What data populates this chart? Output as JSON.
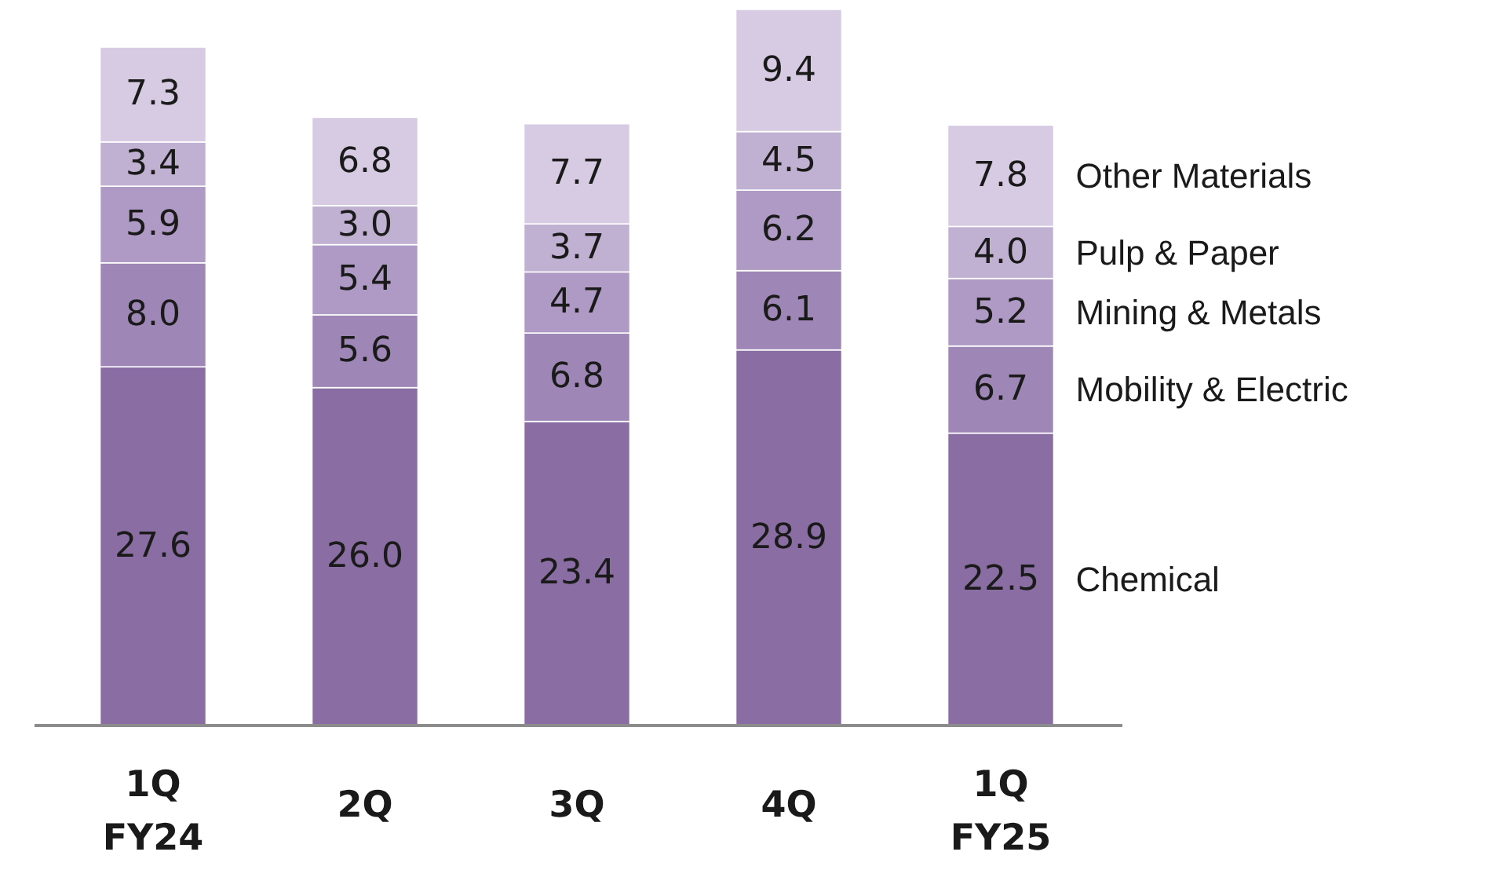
{
  "chart_data": {
    "type": "bar",
    "stacked": true,
    "categories": [
      "1Q FY24",
      "2Q",
      "3Q",
      "4Q",
      "1Q FY25"
    ],
    "series": [
      {
        "name": "Chemical",
        "color": "#8a6ea3",
        "values": [
          27.6,
          26.0,
          23.4,
          28.9,
          22.5
        ],
        "value_labels": [
          "27.6",
          "26.0",
          "23.4",
          "28.9",
          "22.5"
        ]
      },
      {
        "name": "Mobility & Electric",
        "color": "#9e86b6",
        "values": [
          8.0,
          5.6,
          6.8,
          6.1,
          6.7
        ],
        "value_labels": [
          "8.0",
          "5.6",
          "6.8",
          "6.1",
          "6.7"
        ]
      },
      {
        "name": "Mining & Metals",
        "color": "#ae9ac4",
        "values": [
          5.9,
          5.4,
          4.7,
          6.2,
          5.2
        ],
        "value_labels": [
          "5.9",
          "5.4",
          "4.7",
          "6.2",
          "5.2"
        ]
      },
      {
        "name": "Pulp & Paper",
        "color": "#c0b0d2",
        "values": [
          3.4,
          3.0,
          3.7,
          4.5,
          4.0
        ],
        "value_labels": [
          "3.4",
          "3.0",
          "3.7",
          "4.5",
          "4.0"
        ]
      },
      {
        "name": "Other Materials",
        "color": "#d6cbe2",
        "values": [
          7.3,
          6.8,
          7.7,
          9.4,
          7.8
        ],
        "value_labels": [
          "7.3",
          "6.8",
          "7.7",
          "9.4",
          "7.8"
        ]
      }
    ]
  }
}
